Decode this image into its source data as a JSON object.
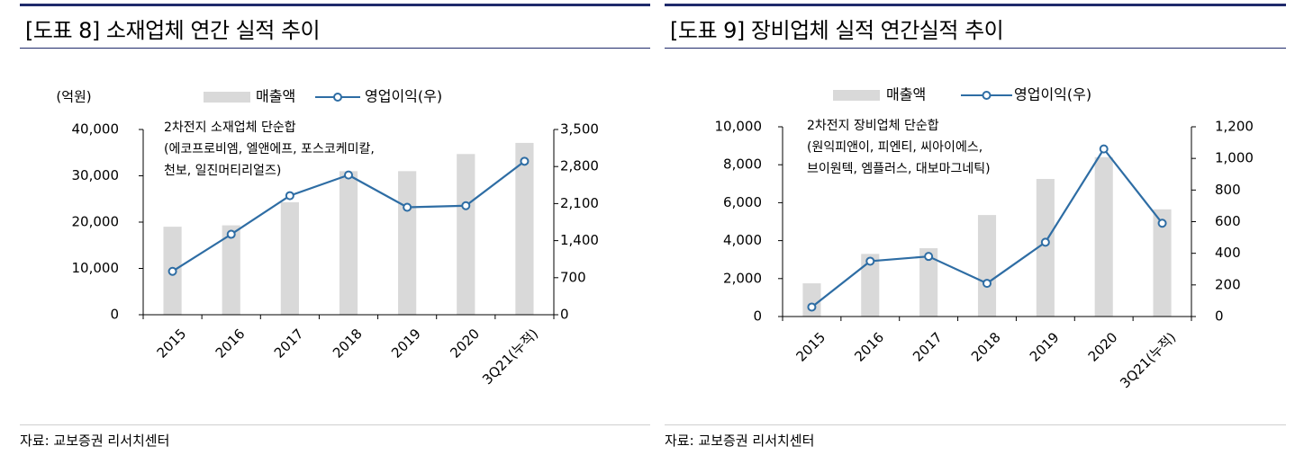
{
  "colors": {
    "bar": "#d9d9d9",
    "line": "#2e6da4",
    "marker_fill": "#ffffff",
    "rule": "#1f2a6b"
  },
  "panels": [
    {
      "title": "[도표 8]  소재업체 연간 실적 추이",
      "source": "자료: 교보증권 리서치센터",
      "unit_label": "(억원)",
      "legend": {
        "bar": "매출액",
        "line": "영업이익(우)"
      },
      "annotation": [
        "2차전지 소재업체 단순합",
        "(에코프로비엠, 엘앤에프, 포스코케미칼,",
        "천보, 일진머티리얼즈)"
      ]
    },
    {
      "title": "[도표 9] 장비업체 실적 연간실적 추이",
      "source": "자료: 교보증권 리서치센터",
      "unit_label": "",
      "legend": {
        "bar": "매출액",
        "line": "영업이익(우)"
      },
      "annotation": [
        "2차전지 장비업체 단순합",
        "(원익피앤이, 피엔티, 씨아이에스,",
        "브이원텍, 엠플러스, 대보마그네틱)"
      ]
    }
  ],
  "chart_data": [
    {
      "type": "bar",
      "categories": [
        "2015",
        "2016",
        "2017",
        "2018",
        "2019",
        "2020",
        "3Q21(누적)"
      ],
      "series": [
        {
          "name": "매출액",
          "type": "bar",
          "axis": "left",
          "values": [
            19000,
            19300,
            24300,
            31000,
            31000,
            34700,
            37100
          ]
        },
        {
          "name": "영업이익(우)",
          "type": "line",
          "axis": "right",
          "values": [
            820,
            1520,
            2250,
            2640,
            2030,
            2060,
            2900
          ]
        }
      ],
      "ylim": [
        0,
        40000
      ],
      "y2lim": [
        0,
        3500
      ],
      "yticks": [
        "0",
        "10,000",
        "20,000",
        "30,000",
        "40,000"
      ],
      "y2ticks": [
        "0",
        "700",
        "1,400",
        "2,100",
        "2,800",
        "3,500"
      ],
      "legend_position": "top"
    },
    {
      "type": "bar",
      "categories": [
        "2015",
        "2016",
        "2017",
        "2018",
        "2019",
        "2020",
        "3Q21(누적)"
      ],
      "series": [
        {
          "name": "매출액",
          "type": "bar",
          "axis": "left",
          "values": [
            1750,
            3300,
            3600,
            5350,
            7250,
            8400,
            5650
          ]
        },
        {
          "name": "영업이익(우)",
          "type": "line",
          "axis": "right",
          "values": [
            60,
            350,
            380,
            210,
            470,
            1060,
            590
          ]
        }
      ],
      "ylim": [
        0,
        10000
      ],
      "y2lim": [
        0,
        1200
      ],
      "yticks": [
        "0",
        "2,000",
        "4,000",
        "6,000",
        "8,000",
        "10,000"
      ],
      "y2ticks": [
        "0",
        "200",
        "400",
        "600",
        "800",
        "1,000",
        "1,200"
      ],
      "legend_position": "top"
    }
  ]
}
